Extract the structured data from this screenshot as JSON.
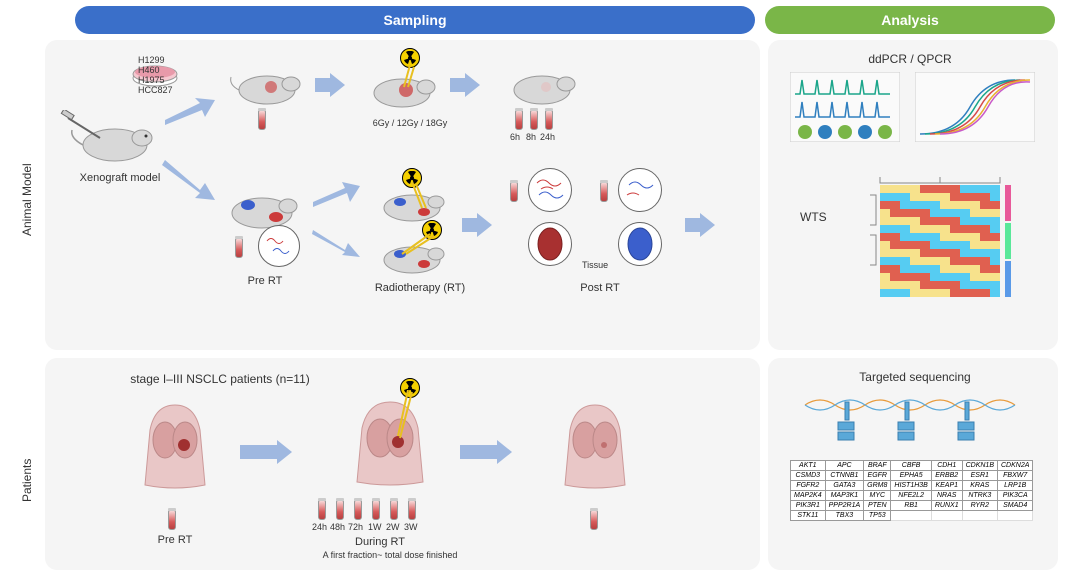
{
  "headers": {
    "sampling": "Sampling",
    "analysis": "Analysis"
  },
  "rows": {
    "animal": "Animal Model",
    "patients": "Patients"
  },
  "colors": {
    "sampling_bar": "#3a6fc9",
    "analysis_bar": "#7ab648",
    "section_bg": "#f5f5f5",
    "arrow": "#9fb8e0",
    "tube_red": "#d65a5a",
    "rad_yellow": "#f5d000",
    "mouse_gray": "#d8d8d8",
    "tumor_red": "#cc3b3b",
    "tumor_blue": "#3b5fcc",
    "torso": "#e9c7c7",
    "lung": "#c88"
  },
  "animal": {
    "cell_lines": [
      "H1299",
      "H460",
      "H1975",
      "HCC827"
    ],
    "xenograft": "Xenograft model",
    "doses": "6Gy / 12Gy / 18Gy",
    "post_times": [
      "6h",
      "8h",
      "24h"
    ],
    "pre": "Pre RT",
    "rt": "Radiotherapy (RT)",
    "post": "Post RT",
    "tissue": "Tissue"
  },
  "analysis1": {
    "pcr": "ddPCR / QPCR",
    "wts": "WTS",
    "ddpcr_peaks": {
      "color1": "#1aa58a",
      "color2": "#2f7fbf",
      "n_peaks": 6
    },
    "qpcr_curves": [
      "#2f7fbf",
      "#1aa58a",
      "#d64a4a",
      "#e8b030",
      "#c85ac8",
      "#5ab05a"
    ],
    "heatmap": {
      "rows": 14,
      "cols": 12,
      "palette": [
        "#f7e28c",
        "#f5a24a",
        "#e06050",
        "#6fcf97",
        "#56ccf2",
        "#bb6bd9"
      ]
    }
  },
  "patients": {
    "cohort": "stage I–III NSCLC patients (n=11)",
    "pre": "Pre RT",
    "during_times": [
      "24h",
      "48h",
      "72h",
      "1W",
      "2W",
      "3W"
    ],
    "during": "During RT",
    "during2": "A first fraction~ total dose finished"
  },
  "analysis2": {
    "title": "Targeted sequencing",
    "genes": [
      [
        "AKT1",
        "APC",
        "BRAF",
        "CBFB",
        "CDH1",
        "CDKN1B",
        "CDKN2A"
      ],
      [
        "CSMD3",
        "CTNNB1",
        "EGFR",
        "EPHA5",
        "ERBB2",
        "ESR1",
        "FBXW7"
      ],
      [
        "FGFR2",
        "GATA3",
        "GRM8",
        "HIST1H3B",
        "KEAP1",
        "KRAS",
        "LRP1B"
      ],
      [
        "MAP2K4",
        "MAP3K1",
        "MYC",
        "NFE2L2",
        "NRAS",
        "NTRK3",
        "PIK3CA"
      ],
      [
        "PIK3R1",
        "PPP2R1A",
        "PTEN",
        "RB1",
        "RUNX1",
        "RYR2",
        "SMAD4"
      ],
      [
        "STK11",
        "TBX3",
        "TP53",
        "",
        "",
        "",
        ""
      ]
    ]
  }
}
